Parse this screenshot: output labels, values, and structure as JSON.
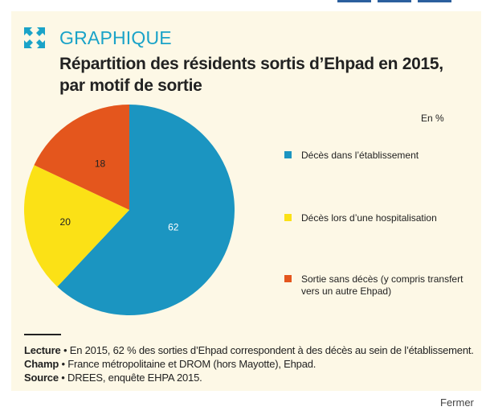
{
  "header": {
    "label": "GRAPHIQUE",
    "icon": "expand-arrows-icon"
  },
  "title_line1": "Répartition des résidents sortis d’Ehpad en 2015,",
  "title_line2": "par motif de sortie",
  "unit_label": "En %",
  "chart_data": {
    "type": "pie",
    "title": "Répartition des résidents sortis d’Ehpad en 2015, par motif de sortie",
    "unit": "En %",
    "slices": [
      {
        "label": "Décès dans l’établissement",
        "value": 62,
        "color": "#1b95c1"
      },
      {
        "label": "Décès lors d’une hospitalisation",
        "value": 20,
        "color": "#fbe116"
      },
      {
        "label": "Sortie sans décès (y compris transfert vers un autre Ehpad)",
        "value": 18,
        "color": "#e4561d"
      }
    ]
  },
  "legend": [
    {
      "line1": "Décès dans l’établissement",
      "line2": ""
    },
    {
      "line1": "Décès lors d’une hospitalisation",
      "line2": ""
    },
    {
      "line1": "Sortie sans décès (y compris transfert",
      "line2": "vers un autre Ehpad)"
    }
  ],
  "notes": {
    "lecture_key": "Lecture",
    "lecture_text": " • En 2015, 62 % des sorties d’Ehpad correspondent à des décès au sein de l’établissement.",
    "champ_key": "Champ",
    "champ_text": " • France métropolitaine et DROM (hors Mayotte), Ehpad.",
    "source_key": "Source",
    "source_text": " • DREES, enquête EHPA 2015."
  },
  "close_label": "Fermer"
}
